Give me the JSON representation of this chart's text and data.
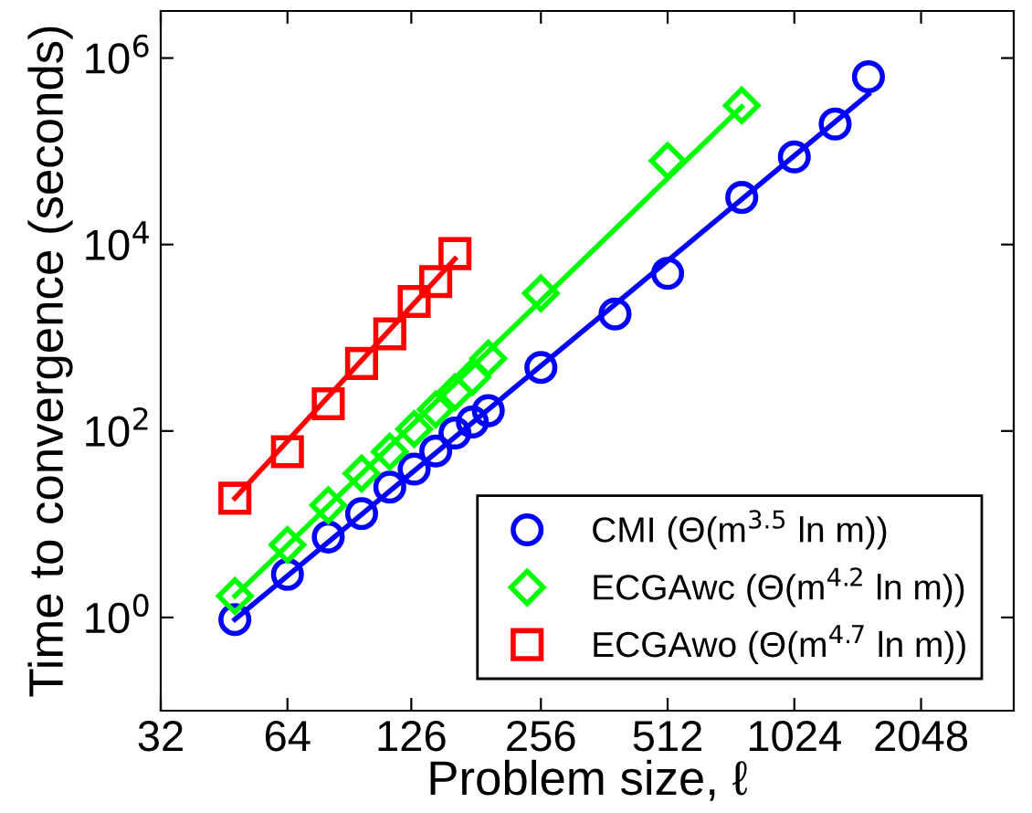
{
  "chart_data": {
    "type": "scatter",
    "xlabel": "Problem size, ℓ",
    "ylabel": "Time to convergence (seconds)",
    "log": "xy",
    "grid": false,
    "legend": "bottom right",
    "xlim": [
      32,
      3400
    ],
    "xticks": [
      32,
      64,
      126,
      256,
      512,
      1024,
      2048
    ],
    "ylim": [
      0.1,
      3200000
    ],
    "yticks": [
      {
        "value": 1,
        "label": "10$^{0}$"
      },
      {
        "value": 100,
        "label": "10$^{2}$"
      },
      {
        "value": 10000,
        "label": "10$^{4}$"
      },
      {
        "value": 1000000,
        "label": "10$^{6}$"
      }
    ],
    "series": [
      {
        "name": "CMI (Θ(m$^{3.5}$ ln m))",
        "color": "#0000ff",
        "marker": "circle",
        "x": [
          48,
          64,
          80,
          96,
          112,
          128,
          144,
          160,
          176,
          192,
          256,
          384,
          512,
          768,
          1024,
          1280,
          1536
        ],
        "values": [
          0.95,
          2.9,
          7.3,
          13,
          25,
          39,
          61,
          95,
          125,
          165,
          480,
          1800,
          4900,
          32000,
          87000,
          196000,
          630000
        ]
      },
      {
        "name": "ECGAwc (Θ(m$^{4.2}$ ln m))",
        "color": "#00ff00",
        "marker": "diamond",
        "x": [
          48,
          64,
          80,
          96,
          112,
          128,
          144,
          160,
          176,
          192,
          256,
          512,
          768
        ],
        "values": [
          1.7,
          6,
          16,
          35,
          60,
          105,
          170,
          260,
          380,
          600,
          3000,
          79000,
          310000
        ]
      },
      {
        "name": "ECGAwo (Θ(m$^{4.7}$ ln m))",
        "color": "#ff0000",
        "marker": "square",
        "x": [
          48,
          64,
          80,
          96,
          112,
          128,
          144,
          160
        ],
        "values": [
          19,
          60,
          196,
          530,
          1100,
          2450,
          4000,
          8000
        ]
      },
      {
        "type": "line",
        "color": "#0000ff",
        "x": [
          48,
          1536
        ],
        "values": [
          0.95,
          410000
        ]
      },
      {
        "type": "line",
        "color": "#00ff00",
        "x": [
          48,
          768
        ],
        "values": [
          1.7,
          300000
        ]
      },
      {
        "type": "line",
        "color": "#ff0000",
        "x": [
          48,
          160
        ],
        "values": [
          19,
          7000
        ]
      }
    ]
  }
}
